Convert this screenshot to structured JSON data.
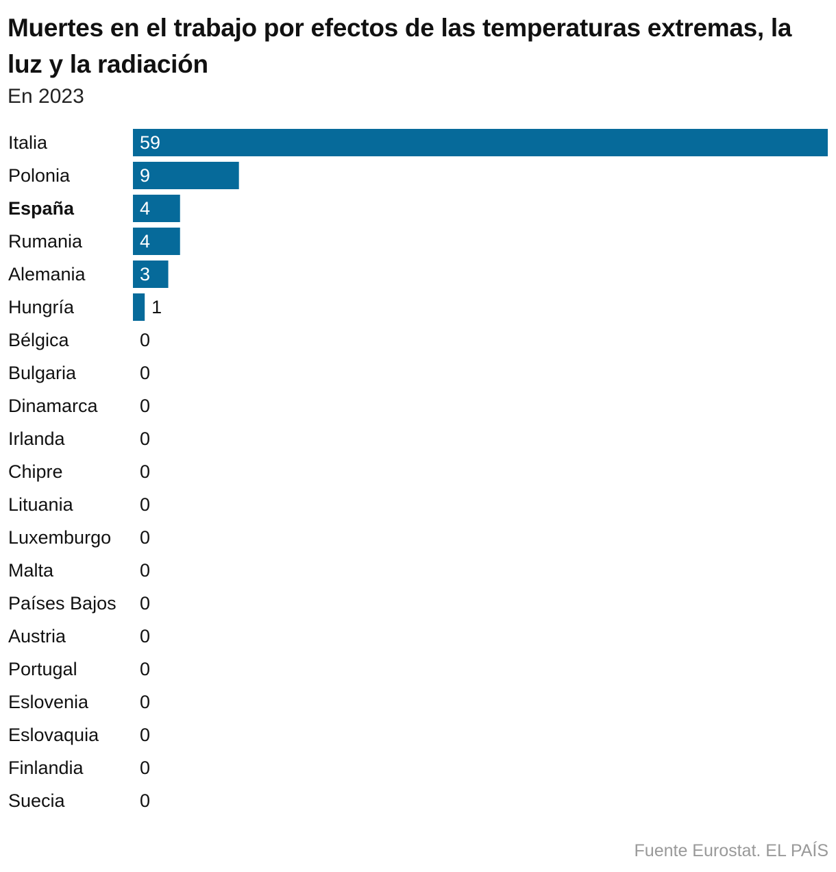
{
  "chart_data": {
    "type": "bar",
    "orientation": "horizontal",
    "title": "Muertes en el trabajo por efectos de las temperaturas extremas, la luz y la radiación",
    "subtitle": "En 2023",
    "categories": [
      "Italia",
      "Polonia",
      "España",
      "Rumania",
      "Alemania",
      "Hungría",
      "Bélgica",
      "Bulgaria",
      "Dinamarca",
      "Irlanda",
      "Chipre",
      "Lituania",
      "Luxemburgo",
      "Malta",
      "Países Bajos",
      "Austria",
      "Portugal",
      "Eslovenia",
      "Eslovaquia",
      "Finlandia",
      "Suecia"
    ],
    "values": [
      59,
      9,
      4,
      4,
      3,
      1,
      0,
      0,
      0,
      0,
      0,
      0,
      0,
      0,
      0,
      0,
      0,
      0,
      0,
      0,
      0
    ],
    "highlight": "España",
    "xlim": [
      0,
      59
    ],
    "grid": false,
    "bar_color": "#066a9a",
    "source": "Fuente Eurostat. EL PAÍS"
  }
}
